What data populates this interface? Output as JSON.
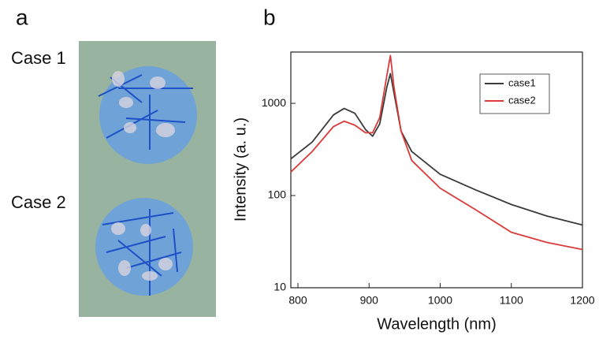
{
  "panel_a": {
    "label": "a",
    "cases": [
      "Case 1",
      "Case 2"
    ]
  },
  "chart_data": {
    "type": "line",
    "panel_label": "b",
    "x_label": "Wavelength (nm)",
    "y_label": "Intensity (a. u.)",
    "x": [
      790,
      820,
      850,
      865,
      880,
      895,
      905,
      915,
      925,
      930,
      935,
      945,
      960,
      1000,
      1050,
      1100,
      1150,
      1200
    ],
    "series": [
      {
        "name": "case1",
        "color": "#3a3a3a",
        "values": [
          250,
          380,
          750,
          880,
          780,
          520,
          440,
          600,
          1500,
          2100,
          1300,
          500,
          300,
          170,
          115,
          80,
          60,
          48
        ]
      },
      {
        "name": "case2",
        "color": "#d93a3a",
        "values": [
          180,
          300,
          560,
          640,
          580,
          480,
          480,
          700,
          2000,
          3300,
          1500,
          500,
          240,
          120,
          70,
          40,
          31,
          26
        ]
      }
    ],
    "xlim": [
      790,
      1200
    ],
    "xticks": [
      800,
      900,
      1000,
      1100,
      1200
    ],
    "ylim": [
      10,
      3600
    ],
    "yticks": [
      10,
      100,
      1000
    ],
    "log_y": true,
    "legend": "upper right",
    "grid": false
  }
}
